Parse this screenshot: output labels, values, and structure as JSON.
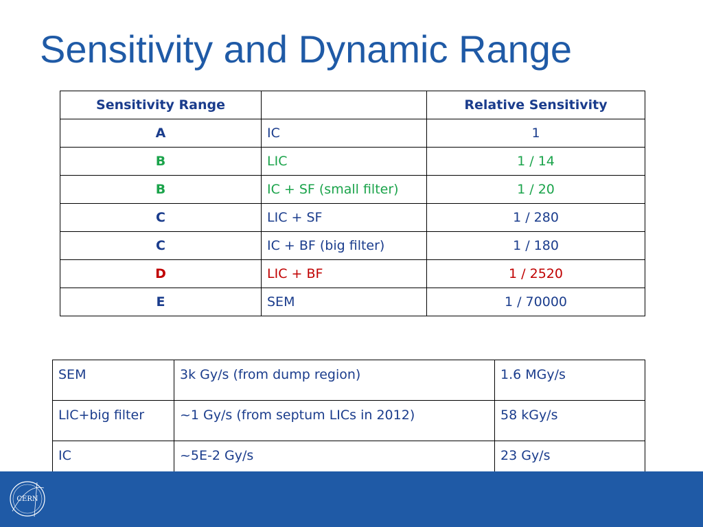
{
  "title": "Sensitivity and Dynamic Range",
  "colors": {
    "title": "#1f5aa6",
    "text_blue": "#1a3c8c",
    "green": "#1aa34a",
    "red": "#c00000",
    "footer": "#1f5aa6"
  },
  "table1": {
    "headers": [
      "Sensitivity Range",
      "",
      "Relative Sensitivity"
    ],
    "rows": [
      {
        "range": "A",
        "config": "IC",
        "sensitivity": "1",
        "color": "#1a3c8c"
      },
      {
        "range": "B",
        "config": "LIC",
        "sensitivity": "1 / 14",
        "color": "#1aa34a"
      },
      {
        "range": "B",
        "config": "IC + SF (small filter)",
        "sensitivity": "1 / 20",
        "color": "#1aa34a"
      },
      {
        "range": "C",
        "config": "LIC + SF",
        "sensitivity": "1 / 280",
        "color": "#1a3c8c"
      },
      {
        "range": "C",
        "config": "IC + BF (big filter)",
        "sensitivity": "1 / 180",
        "color": "#1a3c8c"
      },
      {
        "range": "D",
        "config": "LIC + BF",
        "sensitivity": "1 / 2520",
        "color": "#c00000"
      },
      {
        "range": "E",
        "config": "SEM",
        "sensitivity": "1 / 70000",
        "color": "#1a3c8c"
      }
    ]
  },
  "table2": {
    "rows": [
      {
        "detector": "SEM",
        "rate": "3k Gy/s (from dump region)",
        "max": "1.6 MGy/s"
      },
      {
        "detector": "LIC+big filter",
        "rate": "~1 Gy/s (from septum LICs in 2012)",
        "max": "58 kGy/s"
      },
      {
        "detector": "IC",
        "rate": "~5E-2 Gy/s",
        "max": "23 Gy/s"
      }
    ]
  },
  "footer": {
    "logo_text": "CERN",
    "logo_icon": "cern-logo-icon"
  }
}
